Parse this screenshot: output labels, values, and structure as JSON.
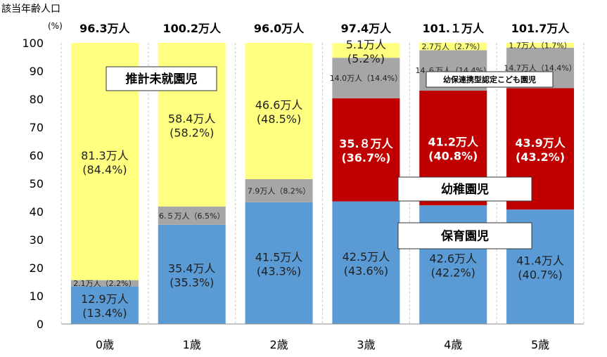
{
  "chart_data": {
    "type": "bar",
    "stacked": true,
    "ylabel": "該当年齢人口",
    "yunit": "(%)",
    "ylim": [
      0,
      100
    ],
    "yticks": [
      0,
      10,
      20,
      30,
      40,
      50,
      60,
      70,
      80,
      90,
      100
    ],
    "grid": "vertical dashed",
    "categories": [
      "0歳",
      "1歳",
      "2歳",
      "3歳",
      "4歳",
      "5歳"
    ],
    "totals": [
      "96.3万人",
      "100.2万人",
      "96.0万人",
      "97.4万人",
      "101.１万人",
      "101.7万人"
    ],
    "series": [
      {
        "name": "保育園児",
        "color": "#5B9BD5",
        "values": [
          13.4,
          35.3,
          43.3,
          43.6,
          42.2,
          40.7
        ],
        "labels": [
          [
            "12.9万人",
            "(13.4%)"
          ],
          [
            "35.4万人",
            "(35.3%)"
          ],
          [
            "41.5万人",
            "(43.3%)"
          ],
          [
            "42.5万人",
            "(43.6%)"
          ],
          [
            "42.6万人",
            "(42.2%)"
          ],
          [
            "41.4万人",
            "(40.7%)"
          ]
        ]
      },
      {
        "name": "幼稚園児",
        "color": "#C00000",
        "values": [
          0,
          0,
          0,
          36.7,
          40.8,
          43.2
        ],
        "labels": [
          null,
          null,
          null,
          [
            "35.８万人",
            "(36.7%)"
          ],
          [
            "41.2万人",
            "(40.8%)"
          ],
          [
            "43.9万人",
            "(43.2%)"
          ]
        ]
      },
      {
        "name": "幼保連携型認定こども園児",
        "color": "#A6A6A6",
        "values": [
          2.2,
          6.5,
          8.2,
          14.4,
          14.4,
          14.4
        ],
        "labels": [
          "2.1万人（2.2%）",
          "6.５万人（6.5%）",
          "7.9万人（8.2%）",
          "14.0万人（14.4%）",
          "14.６万人（14.4%）",
          "14.7万人（14.4%）"
        ]
      },
      {
        "name": "推計未就園児",
        "color": "#FFFF80",
        "values": [
          84.4,
          58.2,
          48.5,
          5.2,
          2.7,
          1.7
        ],
        "labels": [
          [
            "81.3万人",
            "(84.4%)"
          ],
          [
            "58.4万人",
            "(58.2%)"
          ],
          [
            "46.6万人",
            "(48.5%)"
          ],
          [
            "5.1万人",
            "(5.2%)"
          ],
          "2.7万人（2.7%）",
          "1.7万人（1.7%）"
        ]
      }
    ]
  }
}
